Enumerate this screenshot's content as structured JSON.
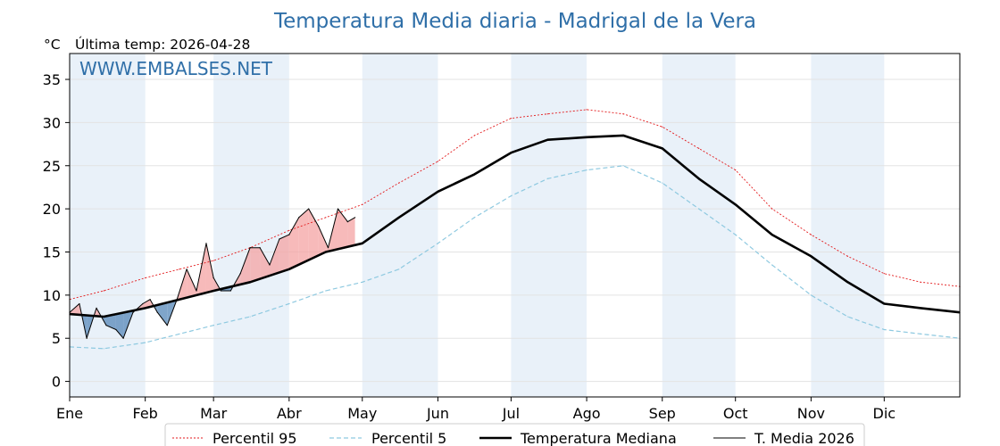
{
  "chart_data": {
    "type": "line",
    "title": "Temperatura Media diaria - Madrigal de la Vera",
    "y_unit": "°C",
    "last_temp_label": "Última temp: 2026-04-28",
    "watermark": "WWW.EMBALSES.NET",
    "ylim": [
      -1.8,
      38
    ],
    "yticks": [
      0,
      5,
      10,
      15,
      20,
      25,
      30,
      35
    ],
    "xlim": [
      1,
      366
    ],
    "months": [
      {
        "label": "Ene",
        "day": 1
      },
      {
        "label": "Feb",
        "day": 32
      },
      {
        "label": "Mar",
        "day": 60
      },
      {
        "label": "Abr",
        "day": 91
      },
      {
        "label": "May",
        "day": 121
      },
      {
        "label": "Jun",
        "day": 152
      },
      {
        "label": "Jul",
        "day": 182
      },
      {
        "label": "Ago",
        "day": 213
      },
      {
        "label": "Sep",
        "day": 244
      },
      {
        "label": "Oct",
        "day": 274
      },
      {
        "label": "Nov",
        "day": 305
      },
      {
        "label": "Dic",
        "day": 335
      }
    ],
    "grid": true,
    "legend_position": "bottom-center",
    "colors": {
      "p95": "#e31a1c",
      "p5": "#8ec9e0",
      "median": "#000000",
      "current": "#000000",
      "above_fill": "#f4a3a3",
      "below_fill": "#5f8fbd",
      "title": "#2f6fa8",
      "band": "#e9f1f9"
    },
    "series": [
      {
        "name": "Percentil 95",
        "key": "p95",
        "x": [
          1,
          15,
          32,
          46,
          60,
          75,
          91,
          106,
          121,
          136,
          152,
          167,
          182,
          197,
          213,
          228,
          244,
          259,
          274,
          289,
          305,
          320,
          335,
          350,
          366
        ],
        "values": [
          9.5,
          10.5,
          12.0,
          13.0,
          14.0,
          15.5,
          17.5,
          19.0,
          20.5,
          23.0,
          25.5,
          28.5,
          30.5,
          31.0,
          31.5,
          31.0,
          29.5,
          27.0,
          24.5,
          20.0,
          17.0,
          14.5,
          12.5,
          11.5,
          11.0
        ]
      },
      {
        "name": "Percentil 5",
        "key": "p5",
        "x": [
          1,
          15,
          32,
          46,
          60,
          75,
          91,
          106,
          121,
          136,
          152,
          167,
          182,
          197,
          213,
          228,
          244,
          259,
          274,
          289,
          305,
          320,
          335,
          350,
          366
        ],
        "values": [
          4.0,
          3.8,
          4.5,
          5.5,
          6.5,
          7.5,
          9.0,
          10.5,
          11.5,
          13.0,
          16.0,
          19.0,
          21.5,
          23.5,
          24.5,
          25.0,
          23.0,
          20.0,
          17.0,
          13.5,
          10.0,
          7.5,
          6.0,
          5.5,
          5.0
        ]
      },
      {
        "name": "Temperatura Mediana",
        "key": "median",
        "x": [
          1,
          15,
          32,
          46,
          60,
          75,
          91,
          106,
          121,
          136,
          152,
          167,
          182,
          197,
          213,
          228,
          244,
          259,
          274,
          289,
          305,
          320,
          335,
          350,
          366
        ],
        "values": [
          7.8,
          7.5,
          8.5,
          9.5,
          10.5,
          11.5,
          13.0,
          15.0,
          16.0,
          19.0,
          22.0,
          24.0,
          26.5,
          28.0,
          28.3,
          28.5,
          27.0,
          23.5,
          20.5,
          17.0,
          14.5,
          11.5,
          9.0,
          8.5,
          8.0
        ]
      },
      {
        "name": "T. Media 2026",
        "key": "current",
        "x": [
          1,
          5,
          8,
          12,
          16,
          20,
          23,
          27,
          31,
          34,
          37,
          41,
          45,
          49,
          53,
          57,
          60,
          63,
          67,
          71,
          75,
          79,
          83,
          87,
          91,
          95,
          99,
          103,
          107,
          111,
          115,
          118
        ],
        "values": [
          8.0,
          9.0,
          5.0,
          8.5,
          6.5,
          6.0,
          5.0,
          8.0,
          9.0,
          9.5,
          8.0,
          6.5,
          9.5,
          13.0,
          10.5,
          16.0,
          12.0,
          10.5,
          10.5,
          12.5,
          15.5,
          15.5,
          13.5,
          16.5,
          17.0,
          19.0,
          20.0,
          18.0,
          15.5,
          20.0,
          18.5,
          19.0
        ]
      }
    ]
  }
}
